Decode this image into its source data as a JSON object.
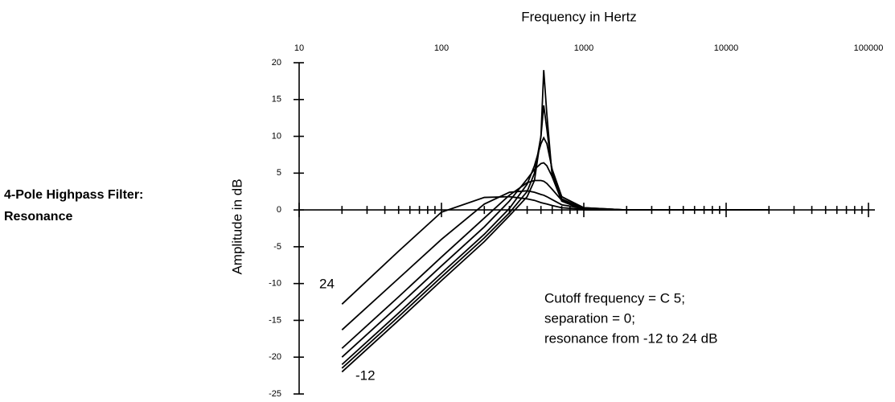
{
  "chart_data": {
    "type": "line",
    "title": "Frequency in Hertz",
    "ylabel": "Amplitude in dB",
    "side_title": [
      "4-Pole Highpass Filter:",
      "Resonance"
    ],
    "annotations": [
      "24",
      "-12"
    ],
    "note": [
      "Cutoff frequency = C 5;",
      "separation = 0;",
      "resonance from -12 to 24 dB"
    ],
    "xscale": "log",
    "xlim": [
      10,
      100000
    ],
    "xticks": [
      10,
      100,
      1000,
      10000,
      100000
    ],
    "xminorticks": [
      20,
      30,
      40,
      50,
      60,
      70,
      80,
      90,
      200,
      300,
      400,
      500,
      600,
      700,
      800,
      900,
      2000,
      3000,
      4000,
      5000,
      6000,
      7000,
      8000,
      9000,
      20000,
      30000,
      40000,
      50000,
      60000,
      70000,
      80000,
      90000
    ],
    "ylim": [
      -25,
      20
    ],
    "yticks": [
      20,
      15,
      10,
      5,
      0,
      -5,
      -10,
      -15,
      -20,
      -25
    ],
    "color": "#000000",
    "x": [
      20,
      50,
      100,
      200,
      300,
      400,
      450,
      500,
      523,
      550,
      600,
      700,
      1000,
      2000,
      20000
    ],
    "series": [
      {
        "values": [
          -12.8,
          -5.6,
          -0.3,
          1.7,
          1.8,
          1.5,
          1.3,
          1.0,
          0.9,
          0.8,
          0.6,
          0.3,
          0.1,
          0,
          0
        ]
      },
      {
        "values": [
          -16.3,
          -9.3,
          -4.0,
          0.8,
          2.4,
          2.6,
          2.4,
          2.1,
          2.0,
          1.8,
          1.4,
          0.7,
          0.2,
          0,
          0
        ]
      },
      {
        "values": [
          -18.8,
          -11.8,
          -6.4,
          -1.1,
          2.0,
          3.7,
          4.0,
          4.0,
          3.9,
          3.6,
          2.8,
          1.3,
          0.3,
          0,
          0
        ]
      },
      {
        "values": [
          -20,
          -13,
          -7.6,
          -2.3,
          1.2,
          4.2,
          5.5,
          6.3,
          6.4,
          6.0,
          4.5,
          1.8,
          0.3,
          0,
          0
        ]
      },
      {
        "values": [
          -21,
          -14,
          -8.6,
          -3.3,
          0.2,
          3.5,
          6,
          9.0,
          9.8,
          9.0,
          5.5,
          1.8,
          0.2,
          0,
          0
        ]
      },
      {
        "values": [
          -21.5,
          -14.5,
          -9.1,
          -3.8,
          -0.4,
          2.5,
          5,
          10,
          14.2,
          11,
          5,
          1.5,
          0.1,
          0,
          0
        ]
      },
      {
        "values": [
          -22,
          -15,
          -9.6,
          -4.3,
          -0.8,
          1.8,
          4,
          10,
          19,
          13,
          4.5,
          1.2,
          0,
          0,
          0
        ]
      }
    ]
  }
}
